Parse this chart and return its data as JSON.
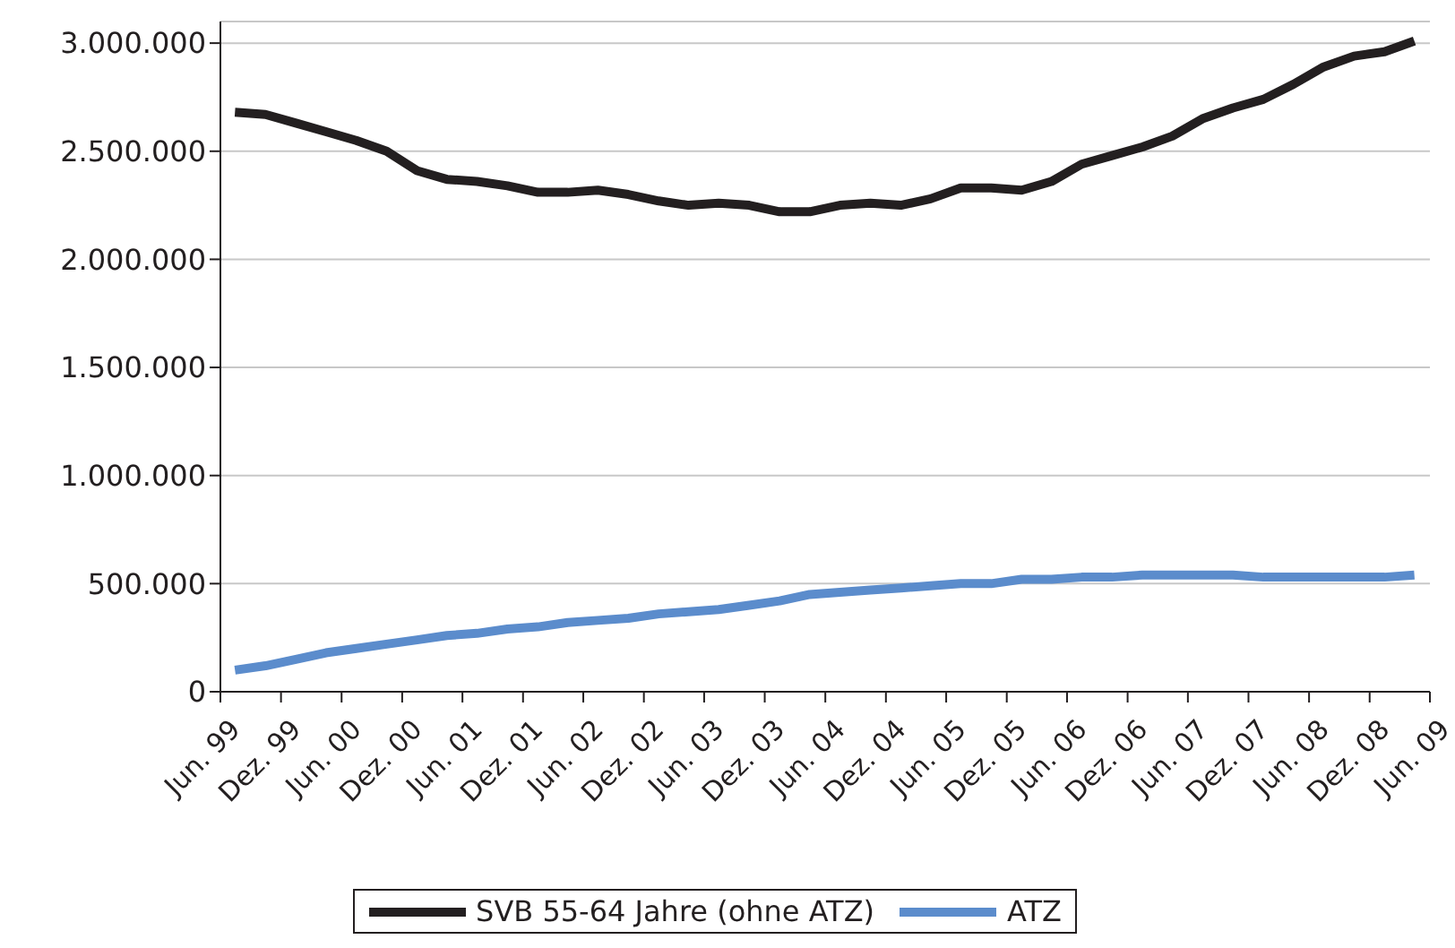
{
  "chart_data": {
    "type": "line",
    "x": [
      "1999-07-15",
      "1999-10-15",
      "2000-01-15",
      "2000-04-15",
      "2000-07-15",
      "2000-10-15",
      "2001-01-15",
      "2001-04-15",
      "2001-07-15",
      "2001-10-15",
      "2002-01-15",
      "2002-04-15",
      "2002-07-15",
      "2002-10-15",
      "2003-01-15",
      "2003-04-15",
      "2003-07-15",
      "2003-10-15",
      "2004-01-15",
      "2004-04-15",
      "2004-07-15",
      "2004-10-15",
      "2005-01-15",
      "2005-04-15",
      "2005-07-15",
      "2005-10-15",
      "2006-01-15",
      "2006-04-15",
      "2006-07-15",
      "2006-10-15",
      "2007-01-15",
      "2007-04-15",
      "2007-07-15",
      "2007-10-15",
      "2008-01-15",
      "2008-04-15",
      "2008-07-15",
      "2008-10-15",
      "2009-01-15",
      "2009-04-15"
    ],
    "xlim": [
      "1999-06",
      "2009-06"
    ],
    "xticks": [
      {
        "value": "1999-06",
        "label": "Jun. 99"
      },
      {
        "value": "1999-12",
        "label": "Dez. 99"
      },
      {
        "value": "2000-06",
        "label": "Jun. 00"
      },
      {
        "value": "2000-12",
        "label": "Dez. 00"
      },
      {
        "value": "2001-06",
        "label": "Jun. 01"
      },
      {
        "value": "2001-12",
        "label": "Dez. 01"
      },
      {
        "value": "2002-06",
        "label": "Jun. 02"
      },
      {
        "value": "2002-12",
        "label": "Dez. 02"
      },
      {
        "value": "2003-06",
        "label": "Jun. 03"
      },
      {
        "value": "2003-12",
        "label": "Dez. 03"
      },
      {
        "value": "2004-06",
        "label": "Jun. 04"
      },
      {
        "value": "2004-12",
        "label": "Dez. 04"
      },
      {
        "value": "2005-06",
        "label": "Jun. 05"
      },
      {
        "value": "2005-12",
        "label": "Dez. 05"
      },
      {
        "value": "2006-06",
        "label": "Jun. 06"
      },
      {
        "value": "2006-12",
        "label": "Dez. 06"
      },
      {
        "value": "2007-06",
        "label": "Jun. 07"
      },
      {
        "value": "2007-12",
        "label": "Dez. 07"
      },
      {
        "value": "2008-06",
        "label": "Jun. 08"
      },
      {
        "value": "2008-12",
        "label": "Dez. 08"
      },
      {
        "value": "2009-06",
        "label": "Jun. 09"
      }
    ],
    "series": [
      {
        "name": "SVB 55-64 Jahre (ohne ATZ)",
        "color": "#231f20",
        "values": [
          2680000,
          2670000,
          2630000,
          2590000,
          2550000,
          2500000,
          2410000,
          2370000,
          2360000,
          2340000,
          2310000,
          2310000,
          2320000,
          2300000,
          2270000,
          2250000,
          2260000,
          2250000,
          2220000,
          2220000,
          2250000,
          2260000,
          2250000,
          2280000,
          2330000,
          2330000,
          2320000,
          2360000,
          2440000,
          2480000,
          2520000,
          2570000,
          2650000,
          2700000,
          2740000,
          2810000,
          2890000,
          2940000,
          2960000,
          3010000
        ]
      },
      {
        "name": "ATZ",
        "color": "#5b8ccc",
        "values": [
          100000,
          120000,
          150000,
          180000,
          200000,
          220000,
          240000,
          260000,
          270000,
          290000,
          300000,
          320000,
          330000,
          340000,
          360000,
          370000,
          380000,
          400000,
          420000,
          450000,
          460000,
          470000,
          480000,
          490000,
          500000,
          500000,
          520000,
          520000,
          530000,
          530000,
          540000,
          540000,
          540000,
          540000,
          530000,
          530000,
          530000,
          530000,
          530000,
          540000
        ]
      }
    ],
    "ylim": [
      0,
      3100000
    ],
    "yticks": [
      0,
      {
        "value": 500000,
        "label": "500.000"
      },
      {
        "value": 1000000,
        "label": "1.000.000"
      },
      {
        "value": 1500000,
        "label": "1.500.000"
      },
      {
        "value": 2000000,
        "label": "2.000.000"
      },
      {
        "value": 2500000,
        "label": "2.500.000"
      },
      {
        "value": 3000000,
        "label": "3.000.000"
      }
    ],
    "grid": "y",
    "legend": "bottom",
    "marker": "none",
    "line_style": "solid"
  }
}
